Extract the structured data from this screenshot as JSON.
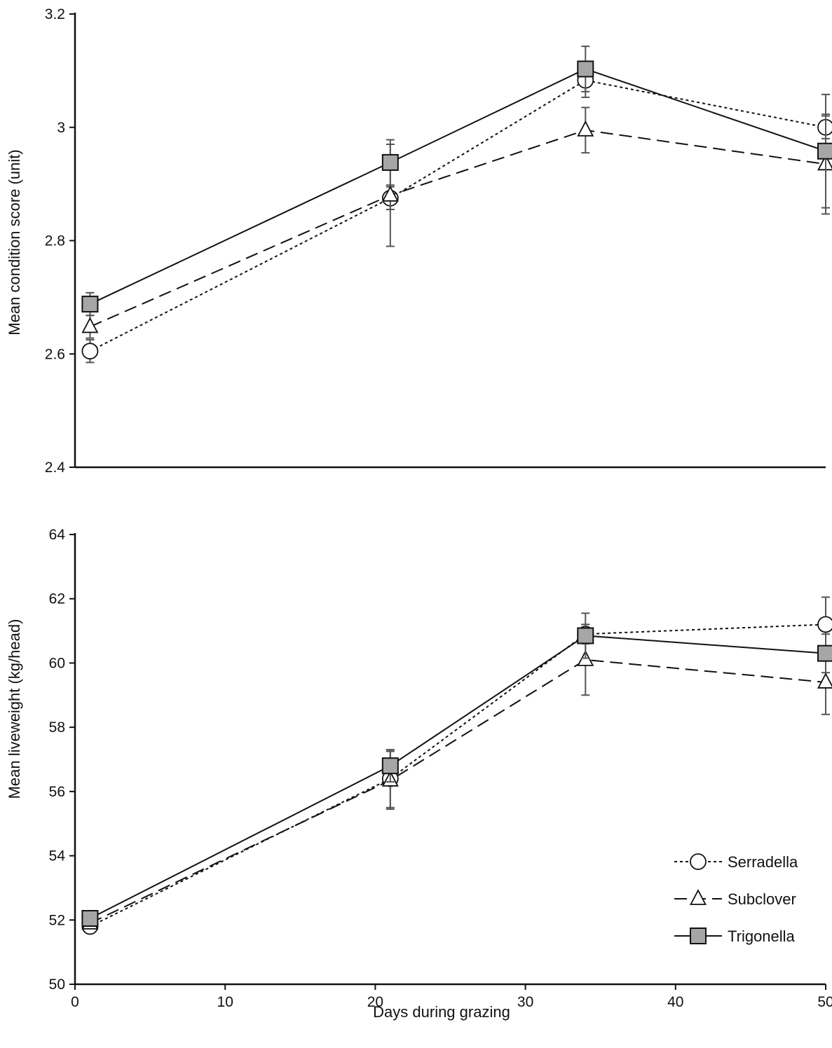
{
  "chart_data": [
    {
      "type": "line",
      "title": "",
      "xlabel": "",
      "ylabel": "Mean condition score (unit)",
      "xlim": [
        0,
        50
      ],
      "ylim": [
        2.4,
        3.2
      ],
      "yticks": [
        "2.4",
        "2.6",
        "2.8",
        "3",
        "3.2"
      ],
      "show_xticks": false,
      "grid": false,
      "x": [
        1,
        21,
        34,
        50
      ],
      "series": [
        {
          "name": "Serradella",
          "marker": "circle",
          "dash": "dotted",
          "values": [
            2.605,
            2.875,
            3.083,
            3.0
          ],
          "errors": [
            0.02,
            0.02,
            0.03,
            0.02
          ]
        },
        {
          "name": "Subclover",
          "marker": "triangle",
          "dash": "dashed",
          "values": [
            2.648,
            2.88,
            2.995,
            2.935
          ],
          "errors": [
            0.02,
            0.09,
            0.04,
            0.088
          ]
        },
        {
          "name": "Trigonella",
          "marker": "square",
          "dash": "solid",
          "values": [
            2.688,
            2.938,
            3.103,
            2.958
          ],
          "errors": [
            0.02,
            0.04,
            0.04,
            0.1
          ]
        }
      ]
    },
    {
      "type": "line",
      "title": "",
      "xlabel": "Days during grazing",
      "ylabel": "Mean liveweight (kg/head)",
      "xlim": [
        0,
        50
      ],
      "ylim": [
        50,
        64
      ],
      "xticks": [
        "0",
        "10",
        "20",
        "30",
        "40",
        "50"
      ],
      "yticks": [
        "50",
        "52",
        "54",
        "56",
        "58",
        "60",
        "62",
        "64"
      ],
      "show_xticks": true,
      "grid": false,
      "legend_position": "bottom-right",
      "x": [
        1,
        21,
        34,
        50
      ],
      "series": [
        {
          "name": "Serradella",
          "marker": "circle",
          "dash": "dotted",
          "values": [
            51.8,
            56.4,
            60.9,
            61.2
          ],
          "errors": [
            0.1,
            0.9,
            0.3,
            0.85
          ]
        },
        {
          "name": "Subclover",
          "marker": "triangle",
          "dash": "dashed",
          "values": [
            51.9,
            56.35,
            60.1,
            59.4
          ],
          "errors": [
            0.1,
            0.9,
            1.1,
            1.0
          ]
        },
        {
          "name": "Trigonella",
          "marker": "square",
          "dash": "solid",
          "values": [
            52.05,
            56.8,
            60.85,
            60.3
          ],
          "errors": [
            0.1,
            0.5,
            0.7,
            0.6
          ]
        }
      ]
    }
  ],
  "legend": {
    "items": [
      {
        "label": "Serradella",
        "marker": "circle",
        "dash": "dotted"
      },
      {
        "label": "Subclover",
        "marker": "triangle",
        "dash": "dashed"
      },
      {
        "label": "Trigonella",
        "marker": "square",
        "dash": "solid"
      }
    ]
  },
  "colors": {
    "line": "#111111",
    "error_bar": "#555555",
    "square_fill": "#a6a6a6",
    "open_fill": "#ffffff"
  }
}
